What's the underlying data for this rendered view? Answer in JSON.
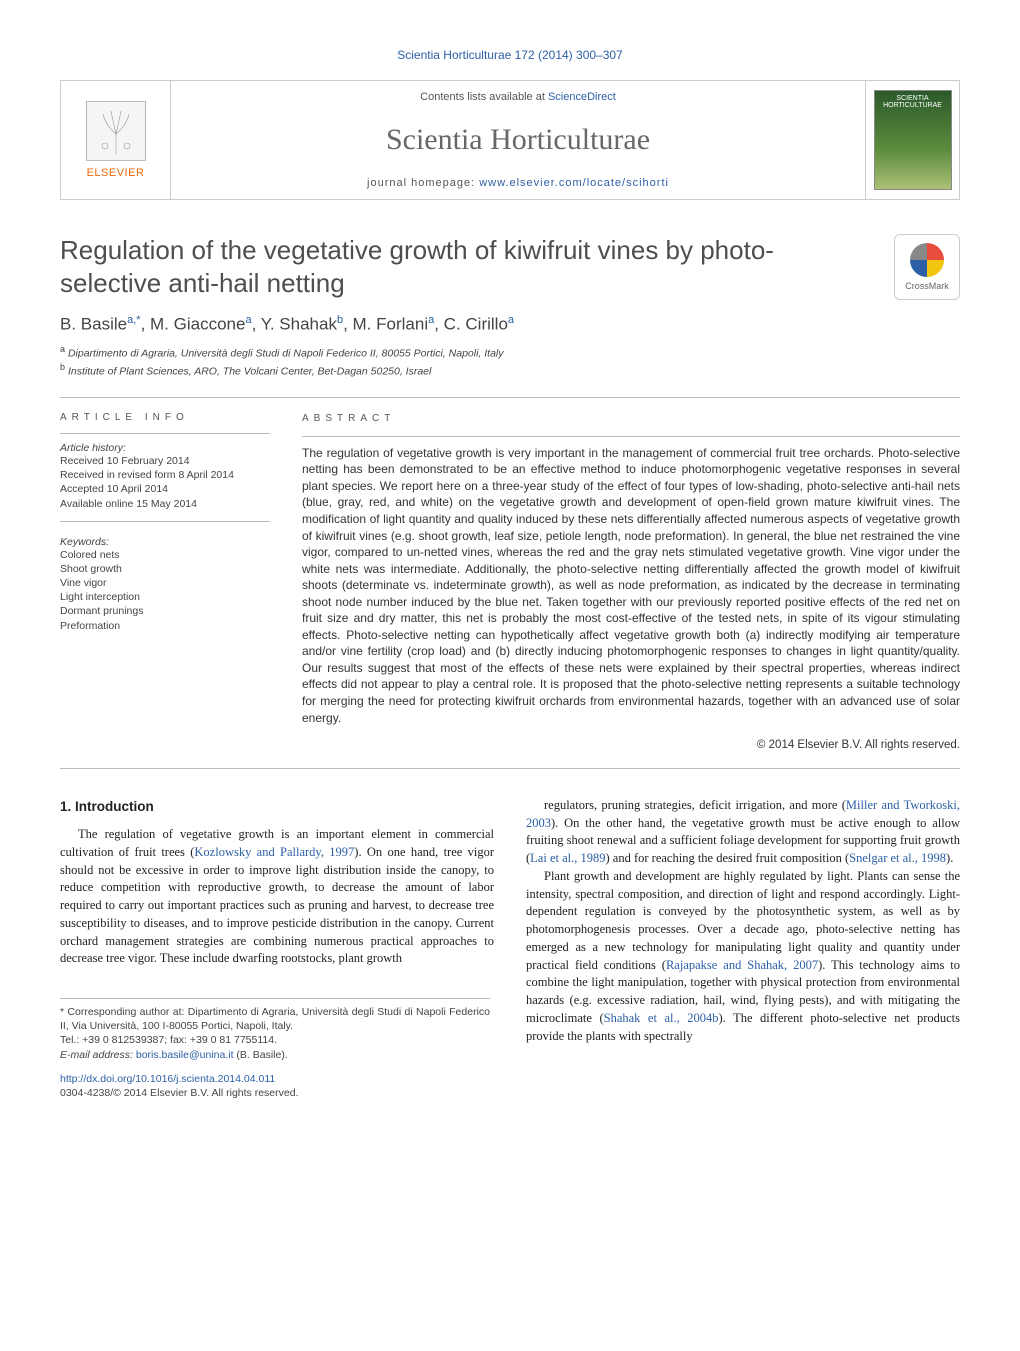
{
  "running_head": "Scientia Horticulturae 172 (2014) 300–307",
  "masthead": {
    "publisher": "ELSEVIER",
    "contents_prefix": "Contents lists available at ",
    "contents_link": "ScienceDirect",
    "journal_name": "Scientia Horticulturae",
    "homepage_prefix": "journal homepage: ",
    "homepage_link": "www.elsevier.com/locate/scihorti",
    "cover_label": "SCIENTIA HORTICULTURAE"
  },
  "crossmark_label": "CrossMark",
  "title": "Regulation of the vegetative growth of kiwifruit vines by photo-selective anti-hail netting",
  "authors_html": "B. Basile<sup>a,*</sup>, M. Giaccone<sup>a</sup>, Y. Shahak<sup>b</sup>, M. Forlani<sup>a</sup>, C. Cirillo<sup>a</sup>",
  "affiliations": [
    {
      "sup": "a",
      "text": "Dipartimento di Agraria, Università degli Studi di Napoli Federico II, 80055 Portici, Napoli, Italy"
    },
    {
      "sup": "b",
      "text": "Institute of Plant Sciences, ARO, The Volcani Center, Bet-Dagan 50250, Israel"
    }
  ],
  "article_info": {
    "heading": "article info",
    "history_label": "Article history:",
    "history": [
      "Received 10 February 2014",
      "Received in revised form 8 April 2014",
      "Accepted 10 April 2014",
      "Available online 15 May 2014"
    ],
    "keywords_label": "Keywords:",
    "keywords": [
      "Colored nets",
      "Shoot growth",
      "Vine vigor",
      "Light interception",
      "Dormant prunings",
      "Preformation"
    ]
  },
  "abstract": {
    "heading": "abstract",
    "text": "The regulation of vegetative growth is very important in the management of commercial fruit tree orchards. Photo-selective netting has been demonstrated to be an effective method to induce photomorphogenic vegetative responses in several plant species. We report here on a three-year study of the effect of four types of low-shading, photo-selective anti-hail nets (blue, gray, red, and white) on the vegetative growth and development of open-field grown mature kiwifruit vines. The modification of light quantity and quality induced by these nets differentially affected numerous aspects of vegetative growth of kiwifruit vines (e.g. shoot growth, leaf size, petiole length, node preformation). In general, the blue net restrained the vine vigor, compared to un-netted vines, whereas the red and the gray nets stimulated vegetative growth. Vine vigor under the white nets was intermediate. Additionally, the photo-selective netting differentially affected the growth model of kiwifruit shoots (determinate vs. indeterminate growth), as well as node preformation, as indicated by the decrease in terminating shoot node number induced by the blue net. Taken together with our previously reported positive effects of the red net on fruit size and dry matter, this net is probably the most cost-effective of the tested nets, in spite of its vigour stimulating effects. Photo-selective netting can hypothetically affect vegetative growth both (a) indirectly modifying air temperature and/or vine fertility (crop load) and (b) directly inducing photomorphogenic responses to changes in light quantity/quality. Our results suggest that most of the effects of these nets were explained by their spectral properties, whereas indirect effects did not appear to play a central role. It is proposed that the photo-selective netting represents a suitable technology for merging the need for protecting kiwifruit orchards from environmental hazards, together with an advanced use of solar energy.",
    "copyright": "© 2014 Elsevier B.V. All rights reserved."
  },
  "body": {
    "section_heading": "1. Introduction",
    "left_col": "The regulation of vegetative growth is an important element in commercial cultivation of fruit trees (<a class='ref' href='#' data-name='citation-link' data-interactable='true'>Kozlowsky and Pallardy, 1997</a>). On one hand, tree vigor should not be excessive in order to improve light distribution inside the canopy, to reduce competition with reproductive growth, to decrease the amount of labor required to carry out important practices such as pruning and harvest, to decrease tree susceptibility to diseases, and to improve pesticide distribution in the canopy. Current orchard management strategies are combining numerous practical approaches to decrease tree vigor. These include dwarfing rootstocks, plant growth",
    "right_col_p1": "regulators, pruning strategies, deficit irrigation, and more (<a class='ref' href='#' data-name='citation-link' data-interactable='true'>Miller and Tworkoski, 2003</a>). On the other hand, the vegetative growth must be active enough to allow fruiting shoot renewal and a sufficient foliage development for supporting fruit growth (<a class='ref' href='#' data-name='citation-link' data-interactable='true'>Lai et al., 1989</a>) and for reaching the desired fruit composition (<a class='ref' href='#' data-name='citation-link' data-interactable='true'>Snelgar et al., 1998</a>).",
    "right_col_p2": "Plant growth and development are highly regulated by light. Plants can sense the intensity, spectral composition, and direction of light and respond accordingly. Light-dependent regulation is conveyed by the photosynthetic system, as well as by photomorphogenesis processes. Over a decade ago, photo-selective netting has emerged as a new technology for manipulating light quality and quantity under practical field conditions (<a class='ref' href='#' data-name='citation-link' data-interactable='true'>Rajapakse and Shahak, 2007</a>). This technology aims to combine the light manipulation, together with physical protection from environmental hazards (e.g. excessive radiation, hail, wind, flying pests), and with mitigating the microclimate (<a class='ref' href='#' data-name='citation-link' data-interactable='true'>Shahak et al., 2004b</a>). The different photo-selective net products provide the plants with spectrally"
  },
  "footnotes": {
    "corr": "* Corresponding author at: Dipartimento di Agraria, Università degli Studi di Napoli Federico II, Via Università, 100 I-80055 Portici, Napoli, Italy.",
    "tel": "Tel.: +39 0 812539387; fax: +39 0 81 7755114.",
    "email_label": "E-mail address: ",
    "email": "boris.basile@unina.it",
    "email_suffix": " (B. Basile)."
  },
  "doi": {
    "url": "http://dx.doi.org/10.1016/j.scienta.2014.04.011",
    "issn_line": "0304-4238/© 2014 Elsevier B.V. All rights reserved."
  },
  "colors": {
    "link": "#2c5fa5",
    "publisher": "#ec6608",
    "text": "#333333",
    "rule": "#bbbbbb"
  },
  "typography": {
    "title_fontsize": 26,
    "journal_fontsize": 30,
    "body_fontsize": 12.5,
    "abstract_fontsize": 12,
    "info_fontsize": 10.5
  }
}
